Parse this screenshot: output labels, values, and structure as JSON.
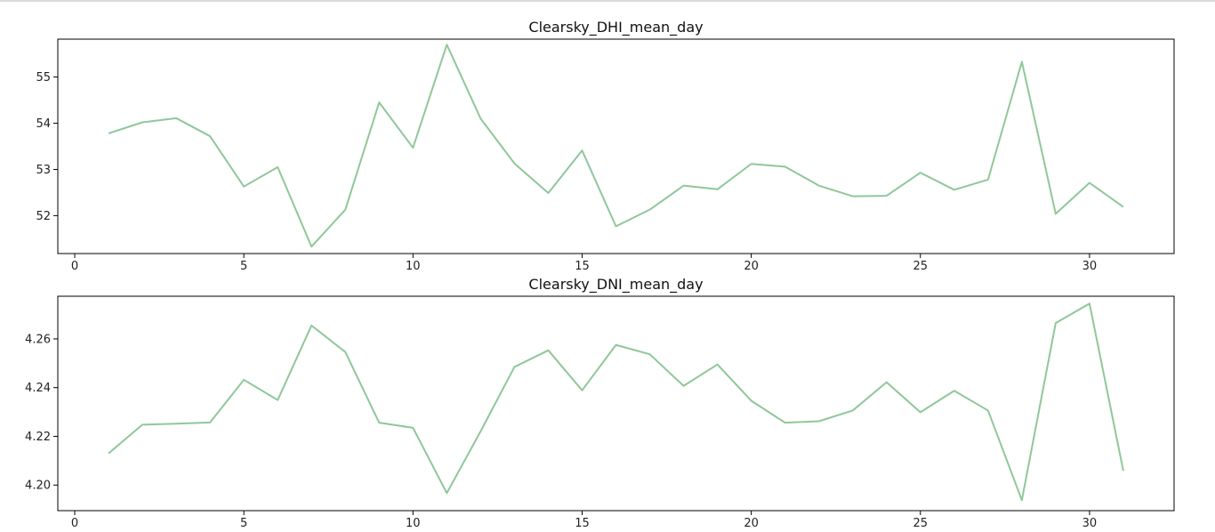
{
  "chart_data": [
    {
      "type": "line",
      "title": "Clearsky_DHI_mean_day",
      "xlabel": "",
      "ylabel": "",
      "xlim": [
        -0.5,
        32.5
      ],
      "ylim": [
        51.18,
        55.82
      ],
      "xticks": [
        0,
        5,
        10,
        15,
        20,
        25,
        30
      ],
      "yticks": [
        52,
        53,
        54,
        55
      ],
      "grid": false,
      "color": "#8fc79a",
      "x": [
        1,
        2,
        3,
        4,
        5,
        6,
        7,
        8,
        9,
        10,
        11,
        12,
        13,
        14,
        15,
        16,
        17,
        18,
        19,
        20,
        21,
        22,
        23,
        24,
        25,
        26,
        27,
        28,
        29,
        30,
        31
      ],
      "y": [
        53.78,
        54.02,
        54.11,
        53.72,
        52.63,
        53.05,
        51.33,
        52.13,
        54.45,
        53.47,
        55.7,
        54.1,
        53.13,
        52.49,
        53.41,
        51.77,
        52.13,
        52.65,
        52.57,
        53.12,
        53.06,
        52.65,
        52.42,
        52.43,
        52.93,
        52.56,
        52.78,
        55.33,
        52.04,
        52.71,
        52.19
      ]
    },
    {
      "type": "line",
      "title": "Clearsky_DNI_mean_day",
      "xlabel": "",
      "ylabel": "",
      "xlim": [
        -0.5,
        32.5
      ],
      "ylim": [
        4.1895,
        4.2775
      ],
      "xticks": [
        0,
        5,
        10,
        15,
        20,
        25,
        30
      ],
      "yticks": [
        4.2,
        4.22,
        4.24,
        4.26
      ],
      "ytick_format": 2,
      "grid": false,
      "color": "#8fc79a",
      "x": [
        1,
        2,
        3,
        4,
        5,
        6,
        7,
        8,
        9,
        10,
        11,
        12,
        13,
        14,
        15,
        16,
        17,
        18,
        19,
        20,
        21,
        22,
        23,
        24,
        25,
        26,
        27,
        28,
        29,
        30,
        31
      ],
      "y": [
        4.213,
        4.2248,
        4.2252,
        4.2257,
        4.2432,
        4.2349,
        4.2655,
        4.2546,
        4.2256,
        4.2235,
        4.1967,
        4.2221,
        4.2485,
        4.2553,
        4.2389,
        4.2575,
        4.2537,
        4.2407,
        4.2495,
        4.2346,
        4.2256,
        4.2262,
        4.2306,
        4.2422,
        4.2299,
        4.2387,
        4.2306,
        4.1938,
        4.2665,
        4.2745,
        4.2058
      ]
    }
  ]
}
